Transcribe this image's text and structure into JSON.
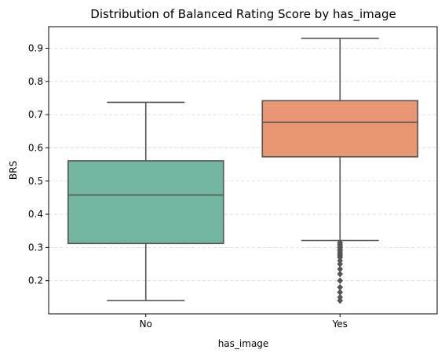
{
  "chart_data": {
    "type": "box",
    "title": "Distribution of Balanced Rating Score by has_image",
    "xlabel": "has_image",
    "ylabel": "BRS",
    "ylim": [
      0.1,
      0.965
    ],
    "yticks": [
      0.2,
      0.3,
      0.4,
      0.5,
      0.6,
      0.7,
      0.8,
      0.9
    ],
    "grid": true,
    "categories": [
      "No",
      "Yes"
    ],
    "boxes": [
      {
        "category": "No",
        "whisker_low": 0.14,
        "q1": 0.312,
        "median": 0.458,
        "q3": 0.561,
        "whisker_high": 0.737,
        "outliers": [],
        "color": "#72b6a1"
      },
      {
        "category": "Yes",
        "whisker_low": 0.321,
        "q1": 0.573,
        "median": 0.677,
        "q3": 0.742,
        "whisker_high": 0.93,
        "outliers": [
          0.14,
          0.15,
          0.165,
          0.18,
          0.2,
          0.22,
          0.235,
          0.25,
          0.26,
          0.27,
          0.275,
          0.28,
          0.285,
          0.29,
          0.295,
          0.3,
          0.305,
          0.31,
          0.315
        ],
        "color": "#e99675"
      }
    ]
  }
}
